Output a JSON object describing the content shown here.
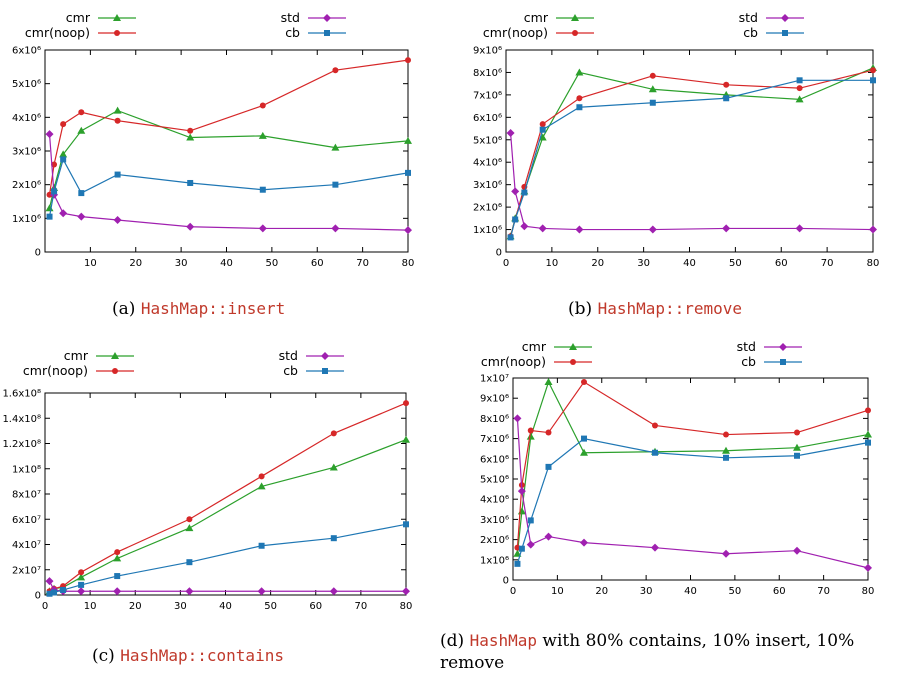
{
  "chart_data": [
    {
      "type": "line",
      "caption": {
        "tag": "(a)",
        "code": "HashMap::insert",
        "rest": ""
      },
      "xlim": [
        0,
        80
      ],
      "ylim": [
        0,
        6000000
      ],
      "xticks": [
        "10",
        "20",
        "30",
        "40",
        "50",
        "60",
        "70",
        "80"
      ],
      "yticks": [
        "0",
        "1x10⁶",
        "2x10⁶",
        "3x10⁶",
        "4x10⁶",
        "5x10⁶",
        "6x10⁶"
      ],
      "ytick_values": [
        0,
        1000000,
        2000000,
        3000000,
        4000000,
        5000000,
        6000000
      ],
      "xtick_values": [
        10,
        20,
        30,
        40,
        50,
        60,
        70,
        80
      ],
      "legend": {
        "cmr": "cmr",
        "cmr_noop": "cmr(noop)",
        "std": "std",
        "cb": "cb"
      },
      "x": [
        1,
        2,
        4,
        8,
        16,
        32,
        48,
        64,
        80
      ],
      "series": [
        {
          "name": "cmr",
          "values": [
            1300000,
            1900000,
            2900000,
            3600000,
            4200000,
            3400000,
            3450000,
            3100000,
            3300000
          ]
        },
        {
          "name": "cmr(noop)",
          "values": [
            1700000,
            2600000,
            3800000,
            4150000,
            3900000,
            3600000,
            4350000,
            5400000,
            5700000
          ]
        },
        {
          "name": "std",
          "values": [
            3500000,
            1700000,
            1150000,
            1050000,
            950000,
            750000,
            700000,
            700000,
            650000
          ]
        },
        {
          "name": "cb",
          "values": [
            1050000,
            1800000,
            2750000,
            1750000,
            2300000,
            2050000,
            1850000,
            2000000,
            2350000
          ]
        }
      ]
    },
    {
      "type": "line",
      "caption": {
        "tag": "(b)",
        "code": "HashMap::remove",
        "rest": ""
      },
      "xlim": [
        0,
        80
      ],
      "ylim": [
        0,
        9000000
      ],
      "xticks": [
        "0",
        "10",
        "20",
        "30",
        "40",
        "50",
        "60",
        "70",
        "80"
      ],
      "xtick_values": [
        0,
        10,
        20,
        30,
        40,
        50,
        60,
        70,
        80
      ],
      "yticks": [
        "0",
        "1x10⁶",
        "2x10⁶",
        "3x10⁶",
        "4x10⁶",
        "5x10⁶",
        "6x10⁶",
        "7x10⁶",
        "8x10⁶",
        "9x10⁶"
      ],
      "ytick_values": [
        0,
        1000000,
        2000000,
        3000000,
        4000000,
        5000000,
        6000000,
        7000000,
        8000000,
        9000000
      ],
      "legend": {
        "cmr": "cmr",
        "cmr_noop": "cmr(noop)",
        "std": "std",
        "cb": "cb"
      },
      "x": [
        1,
        2,
        4,
        8,
        16,
        32,
        48,
        64,
        80
      ],
      "series": [
        {
          "name": "cmr",
          "values": [
            700000,
            1500000,
            2700000,
            5100000,
            8000000,
            7250000,
            7000000,
            6800000,
            8200000
          ]
        },
        {
          "name": "cmr(noop)",
          "values": [
            700000,
            1450000,
            2900000,
            5700000,
            6850000,
            7850000,
            7450000,
            7300000,
            8100000
          ]
        },
        {
          "name": "std",
          "values": [
            5300000,
            2700000,
            1150000,
            1050000,
            1000000,
            1000000,
            1050000,
            1050000,
            1000000
          ]
        },
        {
          "name": "cb",
          "values": [
            650000,
            1450000,
            2650000,
            5450000,
            6450000,
            6650000,
            6850000,
            7650000,
            7650000
          ]
        }
      ]
    },
    {
      "type": "line",
      "caption": {
        "tag": "(c)",
        "code": "HashMap::contains",
        "rest": ""
      },
      "xlim": [
        0,
        80
      ],
      "ylim": [
        0,
        160000000
      ],
      "xticks": [
        "0",
        "10",
        "20",
        "30",
        "40",
        "50",
        "60",
        "70",
        "80"
      ],
      "xtick_values": [
        0,
        10,
        20,
        30,
        40,
        50,
        60,
        70,
        80
      ],
      "yticks": [
        "0",
        "2x10⁷",
        "4x10⁷",
        "6x10⁷",
        "8x10⁷",
        "1x10⁸",
        "1.2x10⁸",
        "1.4x10⁸",
        "1.6x10⁸"
      ],
      "ytick_values": [
        0,
        20000000,
        40000000,
        60000000,
        80000000,
        100000000,
        120000000,
        140000000,
        160000000
      ],
      "legend": {
        "cmr": "cmr",
        "cmr_noop": "cmr(noop)",
        "std": "std",
        "cb": "cb"
      },
      "x": [
        1,
        2,
        4,
        8,
        16,
        32,
        48,
        64,
        80
      ],
      "series": [
        {
          "name": "cmr",
          "values": [
            3000000,
            5000000,
            6000000,
            14000000,
            29000000,
            53000000,
            86000000,
            101000000,
            123000000
          ]
        },
        {
          "name": "cmr(noop)",
          "values": [
            3000000,
            5000000,
            7000000,
            18000000,
            34000000,
            60000000,
            94000000,
            128000000,
            152000000
          ]
        },
        {
          "name": "std",
          "values": [
            11000000,
            4000000,
            3000000,
            3000000,
            3000000,
            3000000,
            3000000,
            3000000,
            3000000
          ]
        },
        {
          "name": "cb",
          "values": [
            1000000,
            2000000,
            4000000,
            8000000,
            15000000,
            26000000,
            39000000,
            45000000,
            56000000
          ]
        }
      ]
    },
    {
      "type": "line",
      "caption": {
        "tag": "(d)",
        "code": "HashMap",
        "rest": " with 80% contains, 10% insert, 10% remove"
      },
      "xlim": [
        0,
        80
      ],
      "ylim": [
        0,
        10000000
      ],
      "xticks": [
        "0",
        "10",
        "20",
        "30",
        "40",
        "50",
        "60",
        "70",
        "80"
      ],
      "xtick_values": [
        0,
        10,
        20,
        30,
        40,
        50,
        60,
        70,
        80
      ],
      "yticks": [
        "0",
        "1x10⁶",
        "2x10⁶",
        "3x10⁶",
        "4x10⁶",
        "5x10⁶",
        "6x10⁶",
        "7x10⁶",
        "8x10⁶",
        "9x10⁶",
        "1x10⁷"
      ],
      "ytick_values": [
        0,
        1000000,
        2000000,
        3000000,
        4000000,
        5000000,
        6000000,
        7000000,
        8000000,
        9000000,
        10000000
      ],
      "legend": {
        "cmr": "cmr",
        "cmr_noop": "cmr(noop)",
        "std": "std",
        "cb": "cb"
      },
      "x": [
        1,
        2,
        4,
        8,
        16,
        32,
        48,
        64,
        80
      ],
      "series": [
        {
          "name": "cmr",
          "values": [
            1300000,
            3400000,
            7100000,
            9800000,
            6300000,
            6350000,
            6400000,
            6550000,
            7200000
          ]
        },
        {
          "name": "cmr(noop)",
          "values": [
            1600000,
            4700000,
            7400000,
            7300000,
            9800000,
            7650000,
            7200000,
            7300000,
            8400000
          ]
        },
        {
          "name": "std",
          "values": [
            8000000,
            4400000,
            1750000,
            2150000,
            1850000,
            1600000,
            1300000,
            1450000,
            600000
          ]
        },
        {
          "name": "cb",
          "values": [
            800000,
            1550000,
            2950000,
            5600000,
            7000000,
            6300000,
            6050000,
            6150000,
            6800000
          ]
        }
      ]
    }
  ],
  "colors": {
    "cmr": "#2ca02c",
    "cmr_noop": "#d62728",
    "std": "#a020b0",
    "cb": "#1f77b4"
  }
}
